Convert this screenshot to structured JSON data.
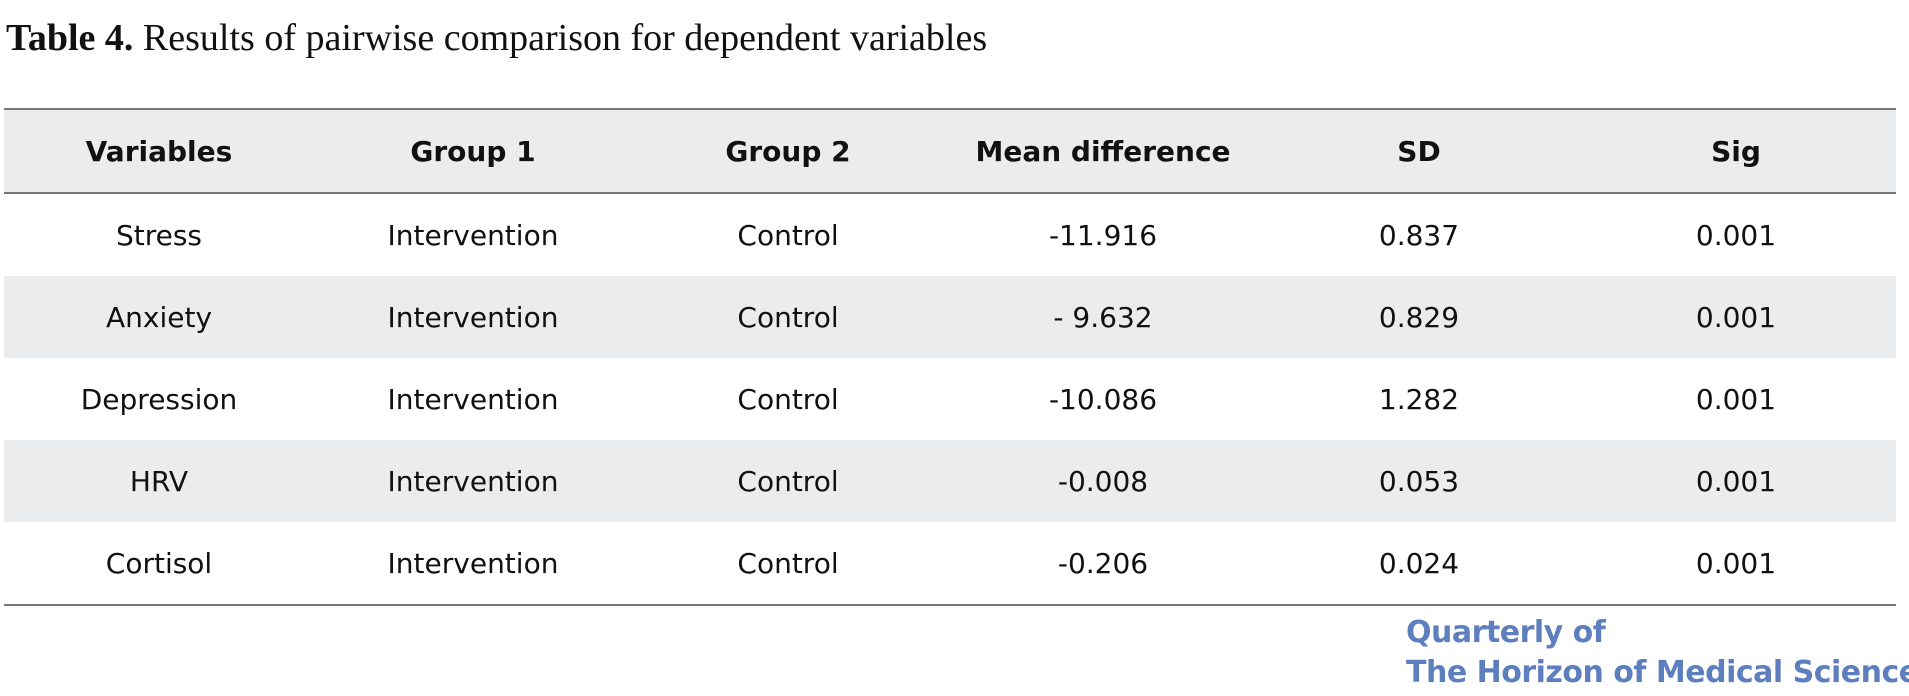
{
  "caption": {
    "label": "Table 4.",
    "text": " Results of pairwise comparison for dependent variables"
  },
  "table": {
    "headers": [
      "Variables",
      "Group 1",
      "Group 2",
      "Mean difference",
      "SD",
      "Sig"
    ],
    "rows": [
      [
        "Stress",
        "Intervention",
        "Control",
        "-11.916",
        "0.837",
        "0.001"
      ],
      [
        "Anxiety",
        "Intervention",
        "Control",
        "- 9.632",
        "0.829",
        "0.001"
      ],
      [
        "Depression",
        "Intervention",
        "Control",
        "-10.086",
        "1.282",
        "0.001"
      ],
      [
        "HRV",
        "Intervention",
        "Control",
        "-0.008",
        "0.053",
        "0.001"
      ],
      [
        "Cortisol",
        "Intervention",
        "Control",
        "-0.206",
        "0.024",
        "0.001"
      ]
    ]
  },
  "journal": {
    "line1": "Quarterly of",
    "line2": "The Horizon of Medical Sciences",
    "color": "#5d7fbe"
  }
}
